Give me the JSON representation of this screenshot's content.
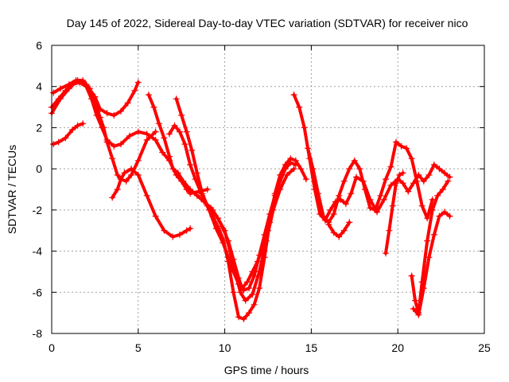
{
  "chart_data": {
    "type": "scatter",
    "title": "Day 145 of 2022, Sidereal Day-to-day VTEC variation (SDTVAR) for receiver nico",
    "xlabel": "GPS time / hours",
    "ylabel": "SDTVAR / TECUs",
    "xlim": [
      0,
      25
    ],
    "ylim": [
      -8,
      6
    ],
    "x_ticks": [
      "0",
      "5",
      "10",
      "15",
      "20",
      "25"
    ],
    "y_ticks": [
      "-8",
      "-6",
      "-4",
      "-2",
      "0",
      "2",
      "4",
      "6"
    ],
    "grid": true,
    "marker": "+",
    "color": "#ff0000",
    "series": [
      {
        "x": [
          0.1,
          0.5,
          1.0,
          1.4,
          1.8,
          2.2,
          2.5,
          2.8,
          3.0,
          3.2,
          3.5,
          3.8,
          4.0,
          4.2,
          4.6,
          5.0,
          5.5,
          6.0,
          6.5,
          7.0,
          7.4,
          7.8,
          8.0
        ],
        "y": [
          3.7,
          3.9,
          4.1,
          4.3,
          4.3,
          3.9,
          3.2,
          2.5,
          2.0,
          1.3,
          0.5,
          -0.3,
          -0.5,
          -0.2,
          0.0,
          -0.3,
          -1.3,
          -2.3,
          -3.0,
          -3.3,
          -3.2,
          -3.0,
          -2.9
        ]
      },
      {
        "x": [
          0.0,
          0.5,
          1.0,
          1.5,
          2.0,
          2.5,
          2.8,
          3.2,
          3.6,
          4.0,
          4.4,
          4.8,
          5.0
        ],
        "y": [
          2.7,
          3.4,
          3.9,
          4.3,
          4.1,
          3.5,
          2.9,
          2.7,
          2.6,
          2.8,
          3.2,
          3.8,
          4.2
        ]
      },
      {
        "x": [
          0.0,
          0.4,
          0.8,
          1.2,
          1.6,
          2.0,
          2.3,
          2.6,
          2.9,
          3.2,
          3.6,
          4.0,
          4.5,
          5.0,
          5.5,
          6.0,
          6.4,
          6.8,
          7.2,
          7.5,
          7.8,
          8.0,
          8.5,
          9.0
        ],
        "y": [
          3.0,
          3.4,
          3.8,
          4.1,
          4.2,
          4.0,
          3.4,
          2.6,
          2.0,
          1.4,
          1.1,
          1.2,
          1.6,
          1.8,
          1.7,
          1.4,
          0.8,
          0.4,
          -0.3,
          -0.6,
          -1.0,
          -1.2,
          -1.1,
          -1.0
        ]
      },
      {
        "x": [
          0.1,
          0.4,
          0.8,
          1.2,
          1.5,
          1.8
        ],
        "y": [
          1.2,
          1.3,
          1.5,
          1.9,
          2.1,
          2.2
        ]
      },
      {
        "x": [
          3.5,
          3.8,
          4.0,
          4.3,
          4.6,
          5.0,
          5.5,
          6.0
        ],
        "y": [
          -1.4,
          -1.0,
          -0.5,
          -0.6,
          -0.3,
          0.4,
          1.4,
          1.8
        ]
      },
      {
        "x": [
          5.6,
          5.9,
          6.2,
          6.5,
          6.8,
          7.0,
          7.3,
          7.6,
          8.0,
          8.4,
          8.8,
          9.2,
          9.6,
          10.0,
          10.3,
          10.6,
          10.9,
          11.2,
          11.6,
          12.0,
          12.4,
          12.8,
          13.2,
          13.6,
          14.0
        ],
        "y": [
          3.6,
          3.0,
          2.2,
          1.5,
          0.6,
          0.0,
          -0.2,
          -0.6,
          -1.0,
          -1.3,
          -1.6,
          -1.9,
          -2.4,
          -3.0,
          -4.0,
          -5.0,
          -6.0,
          -6.4,
          -6.1,
          -5.0,
          -3.5,
          -2.0,
          -1.0,
          -0.3,
          0.0
        ]
      },
      {
        "x": [
          6.8,
          7.1,
          7.4,
          7.7,
          8.0,
          8.3,
          8.7,
          9.1,
          9.5,
          9.9,
          10.2,
          10.5,
          10.8,
          11.1,
          11.4,
          11.7,
          12.0,
          12.3,
          12.6,
          12.9,
          13.2,
          13.5,
          13.8,
          14.1
        ],
        "y": [
          1.7,
          2.1,
          1.8,
          1.2,
          0.2,
          -0.5,
          -1.3,
          -2.0,
          -2.9,
          -3.6,
          -4.3,
          -5.0,
          -5.6,
          -5.9,
          -5.8,
          -5.2,
          -4.2,
          -3.2,
          -2.2,
          -1.3,
          -0.6,
          0.0,
          0.3,
          0.2
        ]
      },
      {
        "x": [
          7.2,
          7.5,
          7.8,
          8.1,
          8.4,
          8.7,
          9.0,
          9.3,
          9.6,
          9.9,
          10.2,
          10.5,
          10.8,
          11.1,
          11.4,
          11.7,
          12.0,
          12.3,
          12.6,
          12.9,
          13.2,
          13.5,
          13.8,
          14.1,
          14.4,
          14.7
        ],
        "y": [
          3.4,
          2.6,
          1.8,
          0.9,
          -0.2,
          -1.2,
          -1.8,
          -2.3,
          -2.8,
          -3.4,
          -4.5,
          -6.0,
          -7.2,
          -7.3,
          -7.0,
          -6.6,
          -5.8,
          -4.3,
          -2.6,
          -1.2,
          -0.3,
          0.2,
          0.5,
          0.4,
          0.0,
          -0.5
        ]
      },
      {
        "x": [
          9.3,
          9.6,
          9.9,
          10.2,
          10.5,
          10.8,
          11.0,
          11.3,
          11.6,
          11.9,
          12.2,
          12.5
        ],
        "y": [
          -2.0,
          -2.4,
          -2.9,
          -3.5,
          -4.4,
          -5.3,
          -5.8,
          -5.5,
          -5.0,
          -4.5,
          -3.8,
          -3.0
        ]
      },
      {
        "x": [
          14.0,
          14.3,
          14.6,
          14.9,
          15.2,
          15.5,
          15.8,
          16.1,
          16.4,
          16.7,
          17.0,
          17.3,
          17.6,
          18.0,
          18.4,
          18.8,
          19.2,
          19.6,
          20.0,
          20.3,
          20.6,
          20.9,
          21.2,
          21.5,
          21.8,
          22.1,
          22.4,
          22.7,
          23.0
        ],
        "y": [
          3.6,
          3.0,
          2.0,
          0.5,
          -1.0,
          -2.2,
          -2.5,
          -2.0,
          -1.6,
          -1.5,
          -1.7,
          -1.2,
          -0.4,
          -0.6,
          -1.5,
          -2.1,
          -1.5,
          -0.8,
          -0.5,
          -0.7,
          -1.1,
          -0.7,
          -0.3,
          -0.6,
          -0.3,
          0.2,
          0.0,
          -0.2,
          -0.4
        ]
      },
      {
        "x": [
          14.8,
          15.1,
          15.4,
          15.7,
          16.0,
          16.3,
          16.6,
          16.9,
          17.2,
          17.5,
          17.8,
          18.1,
          18.4,
          18.7,
          19.0,
          19.3,
          19.6,
          19.9,
          20.2,
          20.5,
          20.8,
          21.1,
          21.4,
          21.7,
          22.0
        ],
        "y": [
          1.0,
          0.0,
          -1.2,
          -2.3,
          -2.6,
          -2.2,
          -1.3,
          -0.6,
          0.0,
          0.4,
          0.0,
          -1.0,
          -1.9,
          -2.0,
          -1.3,
          -0.5,
          0.1,
          1.3,
          1.1,
          1.0,
          0.5,
          -0.6,
          -1.8,
          -2.4,
          -1.5
        ]
      },
      {
        "x": [
          16.0,
          16.3,
          16.6,
          16.9,
          17.2
        ],
        "y": [
          -2.7,
          -3.1,
          -3.3,
          -3.0,
          -2.6
        ]
      },
      {
        "x": [
          19.3,
          19.5,
          19.7,
          19.9,
          20.1,
          20.3
        ],
        "y": [
          -4.1,
          -3.0,
          -1.8,
          -0.7,
          -0.3,
          -0.2
        ]
      },
      {
        "x": [
          20.8,
          21.0,
          21.2,
          21.4,
          21.7,
          22.0,
          22.3,
          22.6,
          22.9
        ],
        "y": [
          -5.2,
          -6.4,
          -7.0,
          -5.5,
          -3.5,
          -2.0,
          -1.3,
          -1.0,
          -0.6
        ]
      },
      {
        "x": [
          20.9,
          21.2,
          21.5,
          21.8,
          22.1,
          22.4,
          22.7,
          23.0
        ],
        "y": [
          -6.8,
          -7.1,
          -5.8,
          -4.3,
          -3.2,
          -2.3,
          -2.1,
          -2.3
        ]
      }
    ]
  }
}
